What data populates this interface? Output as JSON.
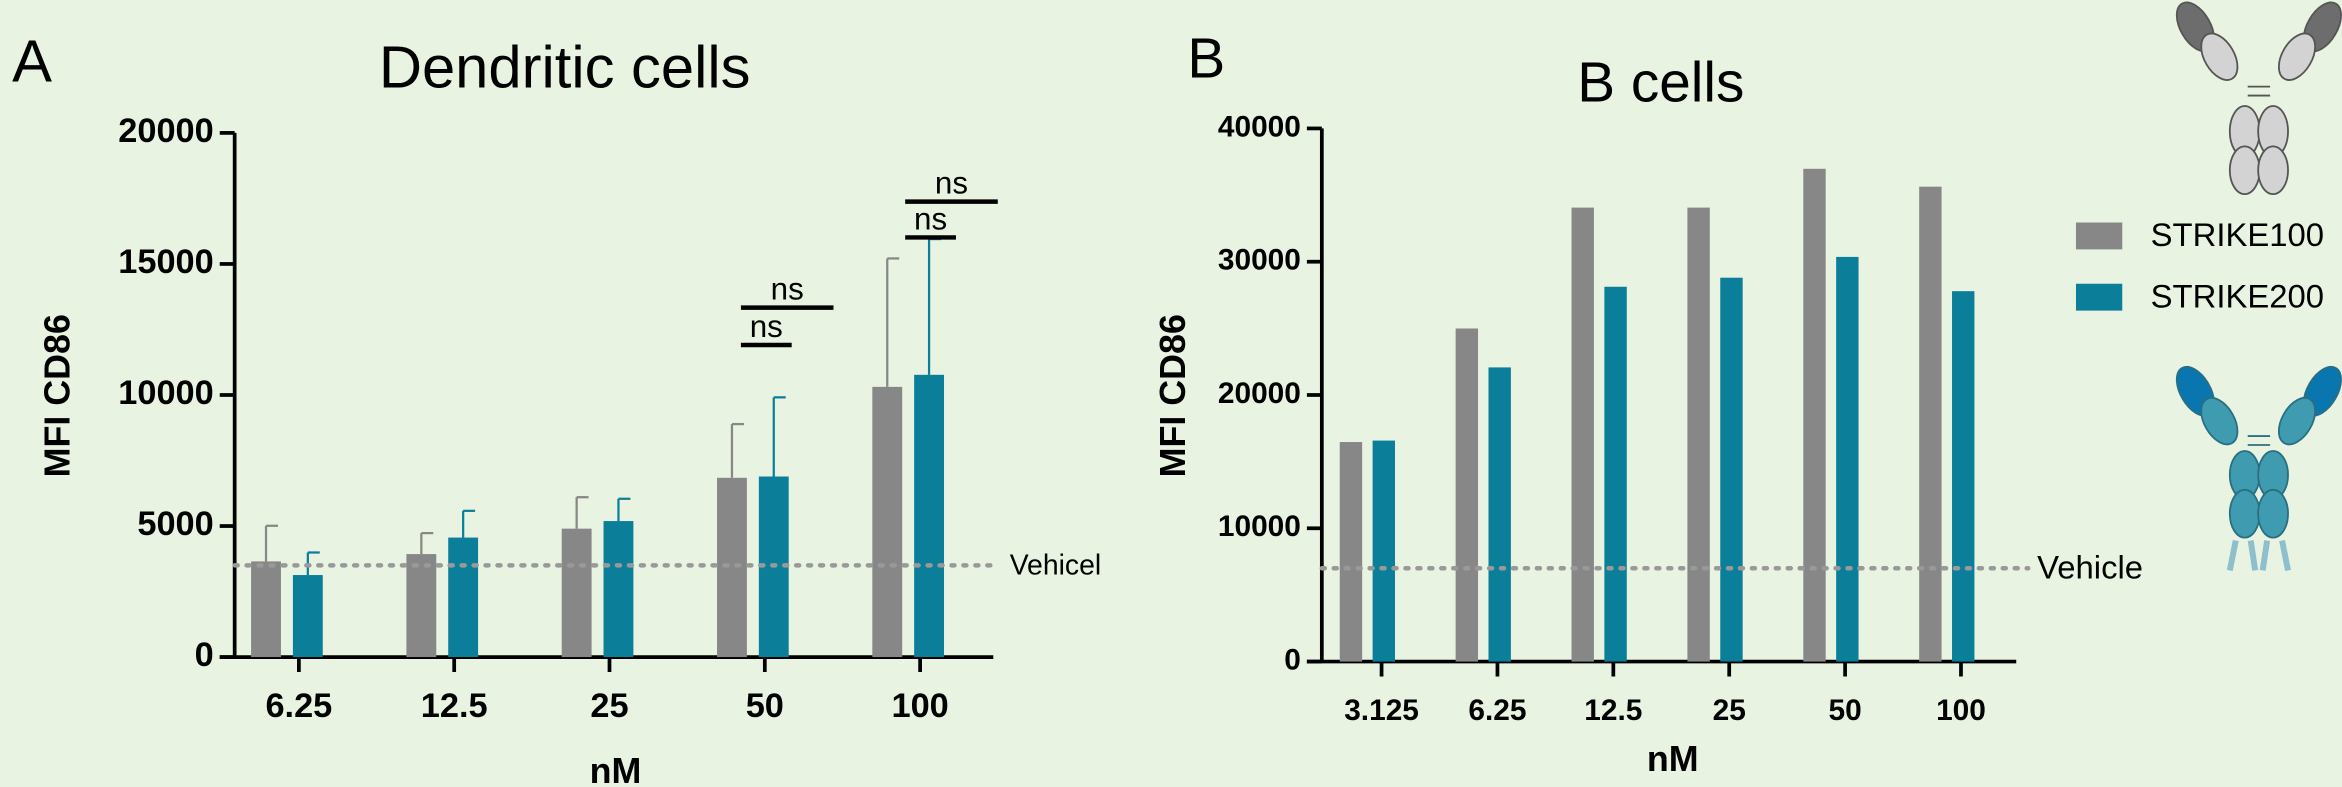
{
  "panel_labels": [
    "A",
    "B"
  ],
  "legend_entries": [
    "STRIKE100",
    "STRIKE200"
  ],
  "chart_data": [
    {
      "type": "bar",
      "title": "Dendritic cells",
      "x_label": "nM",
      "y_label": "MFI CD86",
      "categories": [
        "6.25",
        "12.5",
        "25",
        "50",
        "100"
      ],
      "series": [
        {
          "name": "STRIKE100",
          "color": "#878787",
          "values": [
            3650,
            3930,
            4900,
            6840,
            10310
          ],
          "errors": [
            1360,
            800,
            1200,
            2050,
            4900
          ]
        },
        {
          "name": "STRIKE200",
          "color": "#0b7f9a",
          "values": [
            3130,
            4560,
            5190,
            6890,
            10770
          ],
          "errors": [
            860,
            1020,
            850,
            3020,
            5180
          ]
        }
      ],
      "ylim": [
        0,
        20000
      ],
      "yticks": [
        0,
        5000,
        10000,
        15000,
        20000
      ],
      "reference_line": {
        "value": 3500,
        "label": "Vehicel"
      },
      "annotations": [
        "ns",
        "ns",
        "ns",
        "ns"
      ]
    },
    {
      "type": "bar",
      "title": "B cells",
      "x_label": "nM",
      "y_label": "MFI CD86",
      "categories": [
        "3.125",
        "6.25",
        "12.5",
        "25",
        "50",
        "100"
      ],
      "series": [
        {
          "name": "STRIKE100",
          "color": "#878787",
          "values": [
            16470,
            24990,
            34060,
            34060,
            36970,
            35630
          ]
        },
        {
          "name": "STRIKE200",
          "color": "#0b7f9a",
          "values": [
            16580,
            22070,
            28120,
            28800,
            30360,
            27790
          ]
        }
      ],
      "ylim": [
        0,
        40000
      ],
      "yticks": [
        0,
        10000,
        20000,
        30000,
        40000
      ],
      "reference_line": {
        "value": 7000,
        "label": "Vehicle"
      }
    }
  ]
}
